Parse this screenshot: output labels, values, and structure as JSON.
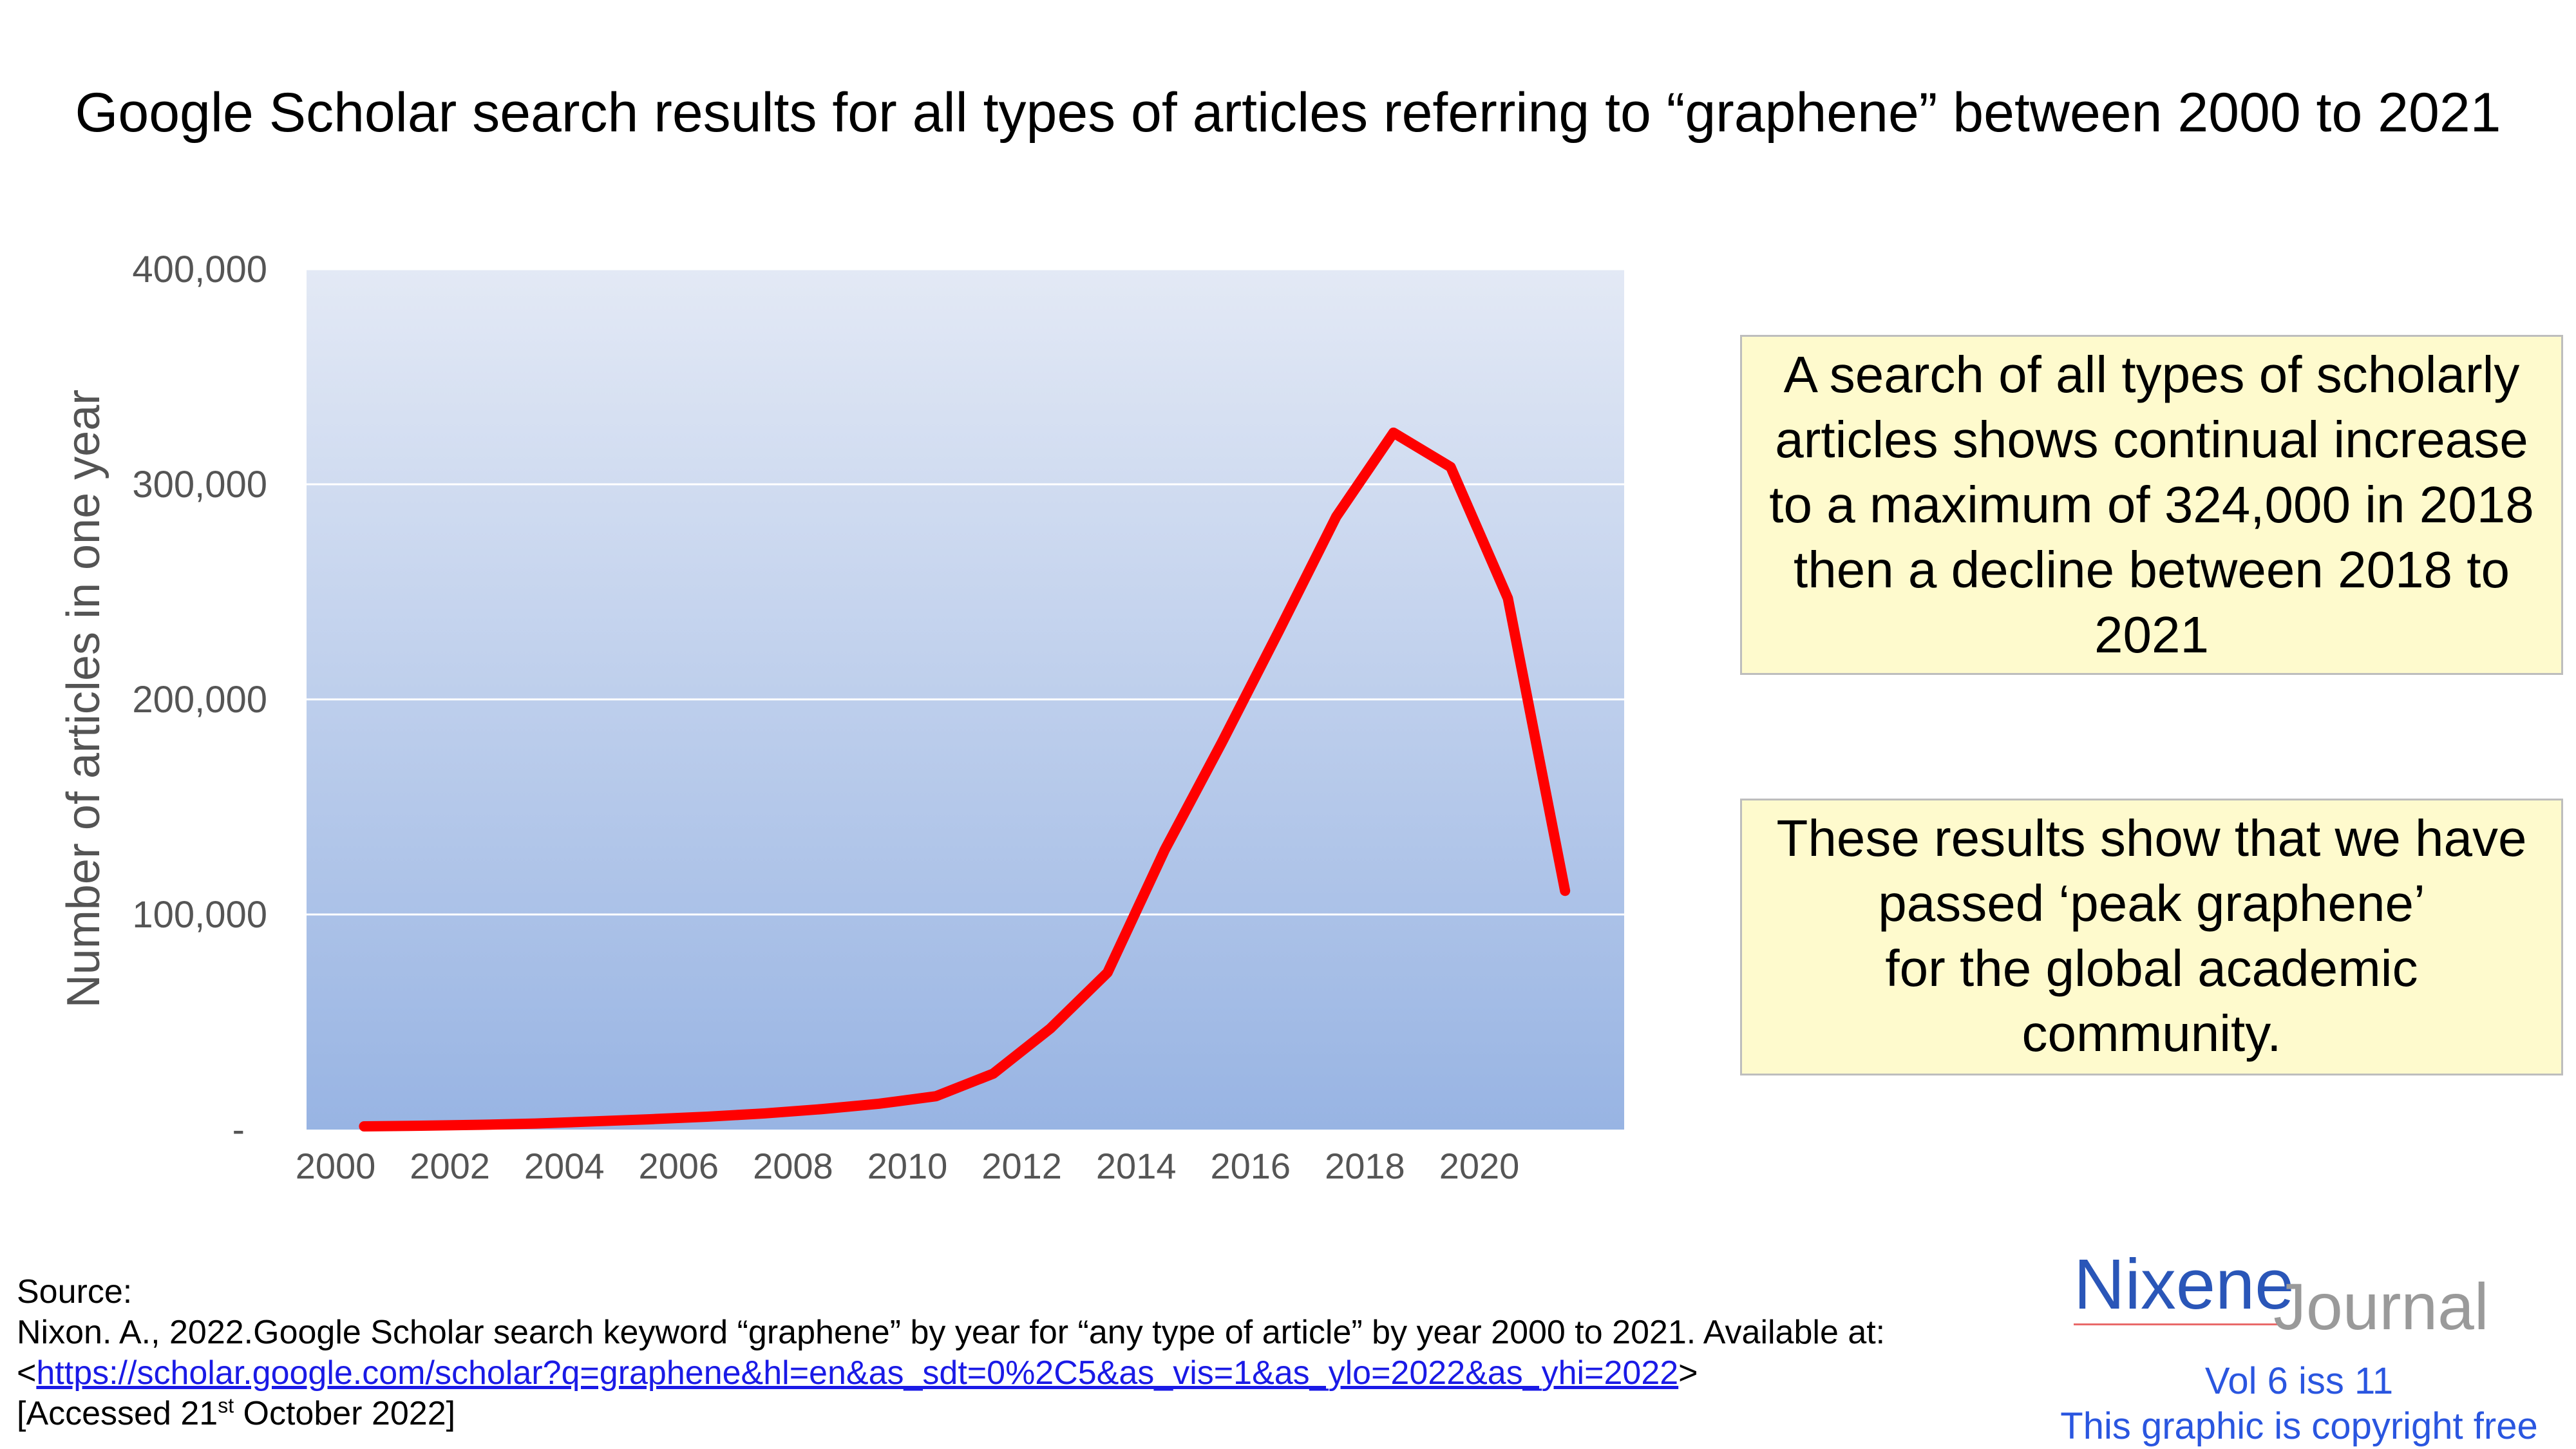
{
  "title": "Google Scholar search results for all types of articles referring to “graphene” between 2000 to 2021",
  "chart_data": {
    "type": "line",
    "title": "Google Scholar search results for all types of articles referring to “graphene” between 2000 to 2021",
    "xlabel": "",
    "ylabel": "Number of articles in one year",
    "x_ticks": [
      "2000",
      "2002",
      "2004",
      "2006",
      "2008",
      "2010",
      "2012",
      "2014",
      "2016",
      "2018",
      "2020"
    ],
    "y_ticks": [
      "400,000",
      "300,000",
      "200,000",
      "100,000",
      "-"
    ],
    "ylim": [
      0,
      400000
    ],
    "grid": "horizontal",
    "series": [
      {
        "color": "#ff0000",
        "x": [
          2000,
          2001,
          2002,
          2003,
          2004,
          2005,
          2006,
          2007,
          2008,
          2009,
          2010,
          2011,
          2012,
          2013,
          2014,
          2015,
          2016,
          2017,
          2018,
          2019,
          2020,
          2021
        ],
        "values": [
          1500,
          1800,
          2200,
          2800,
          3800,
          4800,
          6000,
          7500,
          9500,
          12000,
          15500,
          26000,
          47000,
          73000,
          130000,
          180000,
          232000,
          285000,
          324000,
          308000,
          247000,
          111000
        ]
      }
    ],
    "background": {
      "top": "#e3e9f5",
      "bottom": "#98b4e3"
    }
  },
  "box1": {
    "lines": [
      "A search of all types of scholarly",
      "articles shows continual increase",
      "to a maximum of 324,000 in 2018",
      "then a decline between 2018 to",
      "2021"
    ]
  },
  "box2": {
    "lines": [
      "These results show that we have",
      "passed ‘peak graphene’",
      "for the global academic",
      "community."
    ]
  },
  "source": {
    "heading": "Source:",
    "citation": "Nixon. A., 2022.Google Scholar search keyword “graphene” by year for “any type of article” by year 2000 to 2021. Available at:",
    "link_open": "<",
    "url": "https://scholar.google.com/scholar?q=graphene&hl=en&as_sdt=0%2C5&as_vis=1&as_ylo=2022&as_yhi=2022",
    "link_close": ">",
    "accessed_pre": "[Accessed 21",
    "accessed_sup": "st",
    "accessed_post": " October 2022]"
  },
  "logo": {
    "nixene": "Nixene",
    "journal": "Journal"
  },
  "vol": "Vol 6 iss 11",
  "copyright": "This graphic is copyright free",
  "colors": {
    "line": "#ff0000",
    "box": "#fefacd",
    "logo_blue": "#2a56b8",
    "link_blue": "#1a1ae6"
  }
}
